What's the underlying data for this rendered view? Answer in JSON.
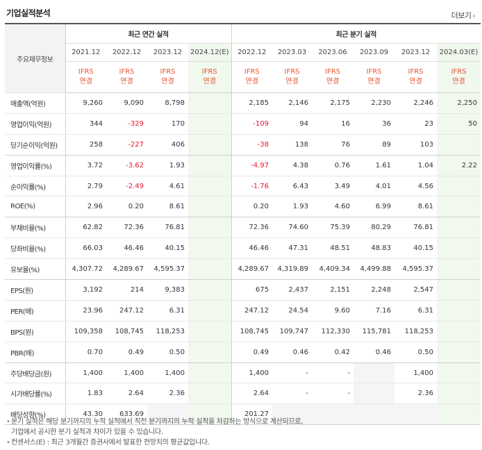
{
  "section_title": "기업실적분석",
  "more_label": "더보기",
  "header": {
    "corner": "주요재무정보",
    "annual_group": "최근 연간 실적",
    "quarterly_group": "최근 분기 실적",
    "periods": [
      "2021.12",
      "2022.12",
      "2023.12",
      "2024.12(E)",
      "2022.12",
      "2023.03",
      "2023.06",
      "2023.09",
      "2023.12",
      "2024.03(E)"
    ],
    "basis_line1": "IFRS",
    "basis_line2": "연결"
  },
  "rows": [
    {
      "label": "매출액(억원)",
      "values": [
        "9,260",
        "9,090",
        "8,798",
        "",
        "2,185",
        "2,146",
        "2,175",
        "2,230",
        "2,246",
        "2,250"
      ]
    },
    {
      "label": "영업이익(억원)",
      "values": [
        "344",
        "-329",
        "170",
        "",
        "-109",
        "94",
        "16",
        "36",
        "23",
        "50"
      ]
    },
    {
      "label": "당기순이익(억원)",
      "values": [
        "258",
        "-227",
        "406",
        "",
        "-38",
        "138",
        "76",
        "89",
        "103",
        ""
      ]
    },
    {
      "label": "영업이익률(%)",
      "values": [
        "3.72",
        "-3.62",
        "1.93",
        "",
        "-4.97",
        "4.38",
        "0.76",
        "1.61",
        "1.04",
        "2.22"
      ]
    },
    {
      "label": "순이익률(%)",
      "values": [
        "2.79",
        "-2.49",
        "4.61",
        "",
        "-1.76",
        "6.43",
        "3.49",
        "4.01",
        "4.56",
        ""
      ]
    },
    {
      "label": "ROE(%)",
      "values": [
        "2.96",
        "0.20",
        "8.61",
        "",
        "0.20",
        "1.93",
        "4.60",
        "6.99",
        "8.61",
        ""
      ]
    },
    {
      "label": "부채비율(%)",
      "values": [
        "62.82",
        "72.36",
        "76.81",
        "",
        "72.36",
        "74.60",
        "75.39",
        "80.29",
        "76.81",
        ""
      ]
    },
    {
      "label": "당좌비율(%)",
      "values": [
        "66.03",
        "46.46",
        "40.15",
        "",
        "46.46",
        "47.31",
        "48.51",
        "48.83",
        "40.15",
        ""
      ]
    },
    {
      "label": "유보율(%)",
      "values": [
        "4,307.72",
        "4,289.67",
        "4,595.37",
        "",
        "4,289.67",
        "4,319.89",
        "4,409.34",
        "4,499.88",
        "4,595.37",
        ""
      ]
    },
    {
      "label": "EPS(원)",
      "values": [
        "3,192",
        "214",
        "9,383",
        "",
        "675",
        "2,437",
        "2,151",
        "2,248",
        "2,547",
        ""
      ]
    },
    {
      "label": "PER(배)",
      "values": [
        "23.96",
        "247.12",
        "6.31",
        "",
        "247.12",
        "24.54",
        "9.60",
        "7.16",
        "6.31",
        ""
      ]
    },
    {
      "label": "BPS(원)",
      "values": [
        "109,358",
        "108,745",
        "118,253",
        "",
        "108,745",
        "109,747",
        "112,330",
        "115,781",
        "118,253",
        ""
      ]
    },
    {
      "label": "PBR(배)",
      "values": [
        "0.70",
        "0.49",
        "0.50",
        "",
        "0.49",
        "0.46",
        "0.42",
        "0.46",
        "0.50",
        ""
      ]
    },
    {
      "label": "주당배당금(원)",
      "values": [
        "1,400",
        "1,400",
        "1,400",
        "",
        "1,400",
        "-",
        "-",
        "",
        "1,400",
        ""
      ]
    },
    {
      "label": "시가배당률(%)",
      "values": [
        "1.83",
        "2.64",
        "2.36",
        "",
        "2.64",
        "-",
        "-",
        "",
        "2.36",
        ""
      ]
    },
    {
      "label": "배당성향(%)",
      "values": [
        "43.30",
        "633.69",
        "",
        "",
        "201.27",
        "",
        "",
        "",
        "",
        ""
      ]
    }
  ],
  "notes": [
    {
      "line1": "분기 실적은 해당 분기까지의 누적 실적에서 직전 분기까지의 누적 실적을 차감하는 방식으로 계산되므로,",
      "line2": "기업에서 공시한 분기 실적과 차이가 있을 수 있습니다."
    },
    {
      "line1": "컨센서스(E) : 최근 3개월간 증권사에서 발표한 전망치의 평균값입니다.",
      "line2": ""
    }
  ],
  "colors": {
    "negative": "#e8132f",
    "ifrs": "#e8532f",
    "estimate_bg": "#f1f8ee",
    "blank_bg": "#f5f5f5"
  }
}
